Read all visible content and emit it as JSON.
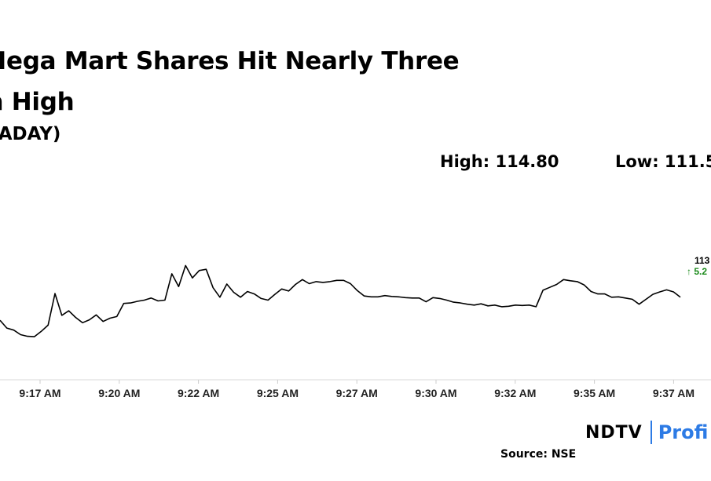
{
  "header": {
    "title_line_1": "al Mega Mart Shares Hit Nearly Three",
    "title_line_2": "th High",
    "subtitle": "(INTRADAY)"
  },
  "stats": {
    "high": "High: 114.80",
    "low": "Low: 111.5"
  },
  "last_price": {
    "value": "113",
    "change": "5.2",
    "arrow_icon": "up-arrow-icon",
    "change_color": "#1a8a1a"
  },
  "brand": {
    "ndtv": "NDTV",
    "profit": "Profi",
    "separator_color": "#2d7be5",
    "profit_color": "#2d7be5"
  },
  "source": "Source: NSE",
  "chart_data": {
    "type": "line",
    "title": "",
    "xlabel": "",
    "ylabel": "",
    "line_color": "#000000",
    "grid": false,
    "x_tick_labels": [
      "9:17 AM",
      "9:20 AM",
      "9:22 AM",
      "9:25 AM",
      "9:27 AM",
      "9:30 AM",
      "9:32 AM",
      "9:35 AM",
      "9:37 AM"
    ],
    "ylim": [
      111.5,
      114.8
    ],
    "series": [
      {
        "values": [
          112.26,
          112.07,
          112.02,
          111.91,
          111.87,
          111.86,
          111.99,
          112.14,
          112.91,
          112.38,
          112.49,
          112.33,
          112.2,
          112.27,
          112.39,
          112.23,
          112.31,
          112.35,
          112.67,
          112.68,
          112.72,
          112.75,
          112.8,
          112.73,
          112.75,
          113.39,
          113.08,
          113.59,
          113.29,
          113.47,
          113.5,
          113.05,
          112.82,
          113.14,
          112.94,
          112.82,
          112.96,
          112.9,
          112.79,
          112.75,
          112.89,
          113.02,
          112.97,
          113.13,
          113.25,
          113.15,
          113.2,
          113.18,
          113.2,
          113.23,
          113.23,
          113.15,
          112.98,
          112.85,
          112.83,
          112.83,
          112.86,
          112.84,
          112.83,
          112.81,
          112.8,
          112.8,
          112.71,
          112.81,
          112.79,
          112.75,
          112.7,
          112.68,
          112.65,
          112.63,
          112.66,
          112.61,
          112.63,
          112.59,
          112.6,
          112.63,
          112.62,
          112.63,
          112.59,
          112.99,
          113.06,
          113.13,
          113.25,
          113.22,
          113.2,
          113.12,
          112.96,
          112.9,
          112.9,
          112.82,
          112.83,
          112.8,
          112.77,
          112.65,
          112.77,
          112.89,
          112.95,
          113.0,
          112.95,
          112.82
        ]
      }
    ]
  }
}
